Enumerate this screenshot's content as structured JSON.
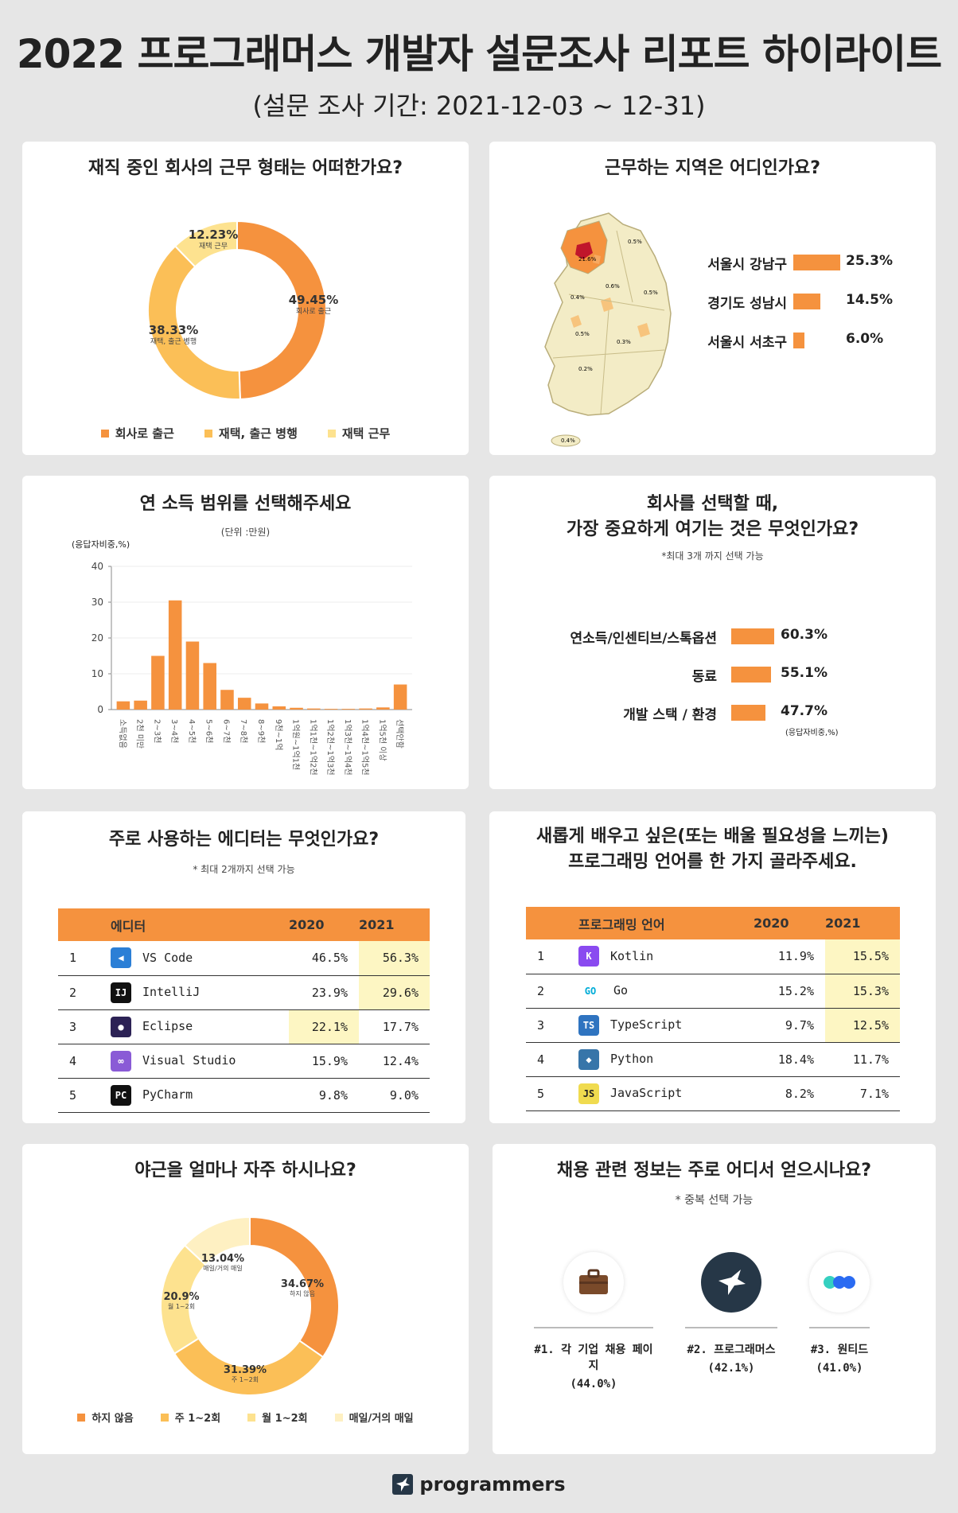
{
  "header": {
    "title": "2022 프로그래머스 개발자 설문조사 리포트 하이라이트",
    "subtitle": "(설문 조사 기간: 2021-12-03 ~ 12-31)"
  },
  "colors": {
    "orange": "#f5923e",
    "mid": "#fbbf57",
    "light": "#fde28f",
    "pale": "#fef0c2",
    "map": "#f3ecc6"
  },
  "work_type": {
    "title": "재직 중인 회사의 근무 형태는 어떠한가요?",
    "slices": [
      {
        "pct": "49.45%",
        "name": "회사로 출근",
        "value": 49.45
      },
      {
        "pct": "38.33%",
        "name": "재택, 출근 병행",
        "value": 38.33
      },
      {
        "pct": "12.23%",
        "name": "재택 근무",
        "value": 12.23
      }
    ],
    "legend": [
      "회사로 출근",
      "재택, 출근 병행",
      "재택 근무"
    ]
  },
  "region": {
    "title": "근무하는 지역은 어디인가요?",
    "rows": [
      {
        "label": "서울시 강남구",
        "value": 25.3,
        "text": "25.3%"
      },
      {
        "label": "경기도 성남시",
        "value": 14.5,
        "text": "14.5%"
      },
      {
        "label": "서울시 서초구",
        "value": 6.0,
        "text": "6.0%"
      }
    ],
    "map_labels": [
      "21.6%",
      "0.5%",
      "0.6%",
      "0.5%",
      "0.4%",
      "0.5%",
      "0.3%",
      "0.2%",
      "0.4%"
    ]
  },
  "income": {
    "title": "연 소득 범위를 선택해주세요",
    "unit": "(단위 :만원)",
    "ylabel": "(응답자비중,%)",
    "yticks": [
      "40",
      "30",
      "20",
      "10",
      "0"
    ]
  },
  "company_priority": {
    "title_line1": "회사를 선택할 때,",
    "title_line2": "가장 중요하게 여기는 것은 무엇인가요?",
    "note": "*최대 3개 까지 선택 가능",
    "rows": [
      {
        "label": "연소득/인센티브/스톡옵션",
        "value": 60.3,
        "text": "60.3%"
      },
      {
        "label": "동료",
        "value": 55.1,
        "text": "55.1%"
      },
      {
        "label": "개발 스택 / 환경",
        "value": 47.7,
        "text": "47.7%"
      }
    ],
    "unit": "(응답자비중,%)"
  },
  "editors": {
    "title": "주로 사용하는 에디터는 무엇인가요?",
    "note": "* 최대 2개까지 선택 가능",
    "headers": [
      "에디터",
      "2020",
      "2021"
    ],
    "rows": [
      {
        "rank": "1",
        "name": "VS Code",
        "y2020": "46.5%",
        "y2021": "56.3%",
        "icon": "vscode-icon"
      },
      {
        "rank": "2",
        "name": "IntelliJ",
        "y2020": "23.9%",
        "y2021": "29.6%",
        "icon": "intellij-icon"
      },
      {
        "rank": "3",
        "name": "Eclipse",
        "y2020": "22.1%",
        "y2021": "17.7%",
        "icon": "eclipse-icon"
      },
      {
        "rank": "4",
        "name": "Visual Studio",
        "y2020": "15.9%",
        "y2021": "12.4%",
        "icon": "visual-studio-icon"
      },
      {
        "rank": "5",
        "name": "PyCharm",
        "y2020": "9.8%",
        "y2021": "9.0%",
        "icon": "pycharm-icon"
      }
    ]
  },
  "languages": {
    "title_line1": "새롭게 배우고 싶은(또는 배울 필요성을 느끼는)",
    "title_line2": "프로그래밍 언어를 한 가지 골라주세요.",
    "headers": [
      "프로그래밍 언어",
      "2020",
      "2021"
    ],
    "rows": [
      {
        "rank": "1",
        "name": "Kotlin",
        "y2020": "11.9%",
        "y2021": "15.5%",
        "icon": "kotlin-icon"
      },
      {
        "rank": "2",
        "name": "Go",
        "y2020": "15.2%",
        "y2021": "15.3%",
        "icon": "go-icon"
      },
      {
        "rank": "3",
        "name": "TypeScript",
        "y2020": "9.7%",
        "y2021": "12.5%",
        "icon": "typescript-icon"
      },
      {
        "rank": "4",
        "name": "Python",
        "y2020": "18.4%",
        "y2021": "11.7%",
        "icon": "python-icon"
      },
      {
        "rank": "5",
        "name": "JavaScript",
        "y2020": "8.2%",
        "y2021": "7.1%",
        "icon": "javascript-icon"
      }
    ]
  },
  "overtime": {
    "title": "야근을 얼마나 자주 하시나요?",
    "slices": [
      {
        "pct": "34.67%",
        "name": "하지 않음",
        "value": 34.67
      },
      {
        "pct": "31.39%",
        "name": "주 1~2회",
        "value": 31.39
      },
      {
        "pct": "20.9%",
        "name": "월 1~2회",
        "value": 20.9
      },
      {
        "pct": "13.04%",
        "name": "매일/거의 매일",
        "value": 13.04
      }
    ],
    "legend": [
      "하지 않음",
      "주 1~2회",
      "월 1~2회",
      "매일/거의 매일"
    ]
  },
  "job_info": {
    "title": "채용 관련 정보는 주로 어디서 얻으시나요?",
    "note": "* 중복 선택 가능",
    "items": [
      {
        "name": "#1. 각 기업 채용 페이지",
        "value": "(44.0%)"
      },
      {
        "name": "#2. 프로그래머스",
        "value": "(42.1%)"
      },
      {
        "name": "#3. 원티드",
        "value": "(41.0%)"
      }
    ]
  },
  "footer": {
    "brand": "programmers"
  },
  "chart_data": [
    {
      "type": "pie",
      "title": "재직 중인 회사의 근무 형태는 어떠한가요?",
      "categories": [
        "회사로 출근",
        "재택, 출근 병행",
        "재택 근무"
      ],
      "values": [
        49.45,
        38.33,
        12.23
      ]
    },
    {
      "type": "bar",
      "title": "근무하는 지역은 어디인가요?",
      "categories": [
        "서울시 강남구",
        "경기도 성남시",
        "서울시 서초구"
      ],
      "values": [
        25.3,
        14.5,
        6.0
      ]
    },
    {
      "type": "bar",
      "title": "연 소득 범위를 선택해주세요",
      "xlabel": "(단위 :만원)",
      "ylabel": "(응답자비중,%)",
      "ylim": [
        0,
        40
      ],
      "categories": [
        "소득없음",
        "2천 미만",
        "2~3천",
        "3~4천",
        "4~5천",
        "5~6천",
        "6~7천",
        "7~8천",
        "8~9천",
        "9천~1억",
        "1억원~1억1천",
        "1억1천~1억2천",
        "1억2천~1억3천",
        "1억3천~1억4천",
        "1억4천~1억5천",
        "1억5천 이상",
        "선택안함"
      ],
      "values": [
        2.3,
        2.5,
        15,
        30.5,
        19,
        13,
        5.5,
        3.3,
        1.7,
        0.9,
        0.5,
        0.3,
        0.2,
        0.2,
        0.3,
        0.6,
        7
      ]
    },
    {
      "type": "bar",
      "title": "회사를 선택할 때, 가장 중요하게 여기는 것은 무엇인가요?",
      "categories": [
        "연소득/인센티브/스톡옵션",
        "동료",
        "개발 스택 / 환경"
      ],
      "values": [
        60.3,
        55.1,
        47.7
      ]
    },
    {
      "type": "table",
      "title": "주로 사용하는 에디터는 무엇인가요?",
      "categories": [
        "VS Code",
        "IntelliJ",
        "Eclipse",
        "Visual Studio",
        "PyCharm"
      ],
      "series": [
        {
          "name": "2020",
          "values": [
            46.5,
            23.9,
            22.1,
            15.9,
            9.8
          ]
        },
        {
          "name": "2021",
          "values": [
            56.3,
            29.6,
            17.7,
            12.4,
            9.0
          ]
        }
      ]
    },
    {
      "type": "table",
      "title": "프로그래밍 언어를 한 가지 골라주세요.",
      "categories": [
        "Kotlin",
        "Go",
        "TypeScript",
        "Python",
        "JavaScript"
      ],
      "series": [
        {
          "name": "2020",
          "values": [
            11.9,
            15.2,
            9.7,
            18.4,
            8.2
          ]
        },
        {
          "name": "2021",
          "values": [
            15.5,
            15.3,
            12.5,
            11.7,
            7.1
          ]
        }
      ]
    },
    {
      "type": "pie",
      "title": "야근을 얼마나 자주 하시나요?",
      "categories": [
        "하지 않음",
        "주 1~2회",
        "월 1~2회",
        "매일/거의 매일"
      ],
      "values": [
        34.67,
        31.39,
        20.9,
        13.04
      ]
    },
    {
      "type": "bar",
      "title": "채용 관련 정보는 주로 어디서 얻으시나요?",
      "categories": [
        "각 기업 채용 페이지",
        "프로그래머스",
        "원티드"
      ],
      "values": [
        44.0,
        42.1,
        41.0
      ]
    }
  ]
}
